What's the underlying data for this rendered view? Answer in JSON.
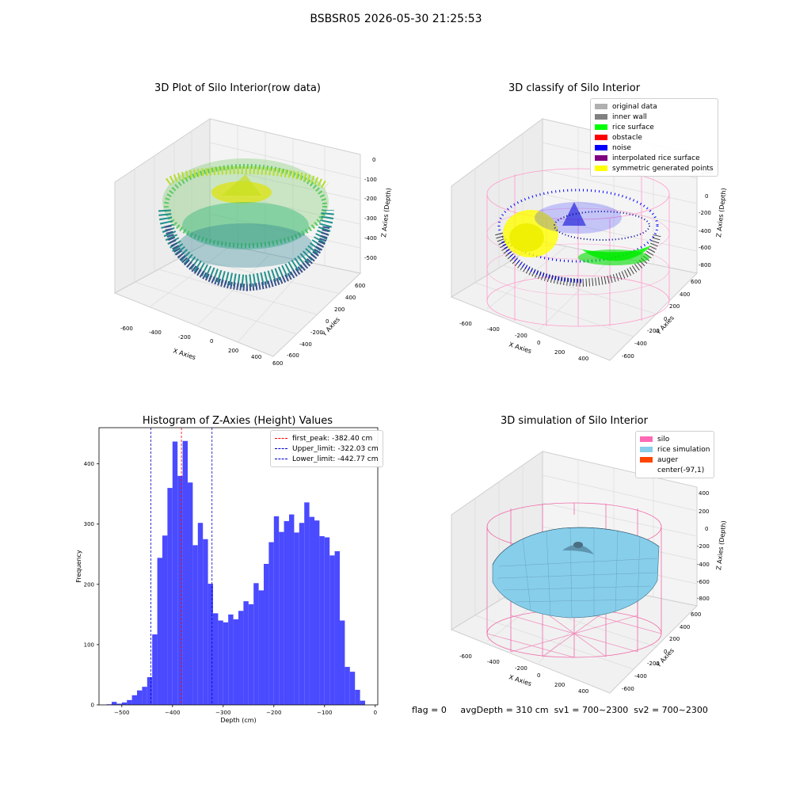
{
  "suptitle": "BSBSR05 2026-05-30 21:25:53",
  "panels": {
    "raw": {
      "title": "3D Plot of Silo Interior(row data)",
      "xlabel": "X Axies",
      "ylabel": "Y Axies",
      "zlabel": "Z Axies (Depth)",
      "xticks": [
        "-600",
        "-400",
        "-200",
        "0",
        "200",
        "400",
        "600"
      ],
      "yticks": [
        "600",
        "400",
        "200",
        "0",
        "-200",
        "-400",
        "-600"
      ],
      "zticks": [
        "0",
        "-100",
        "-200",
        "-300",
        "-400",
        "-500"
      ]
    },
    "classify": {
      "title": "3D classify of Silo Interior",
      "xlabel": "X Axies",
      "ylabel": "Y Axies",
      "zlabel": "Z Axies (Depth)",
      "xticks": [
        "-600",
        "-400",
        "-200",
        "0",
        "200",
        "400"
      ],
      "yticks": [
        "600",
        "400",
        "200",
        "0",
        "-200",
        "-400",
        "-600"
      ],
      "zticks": [
        "200",
        "0",
        "-200",
        "-400",
        "-600",
        "-800"
      ],
      "legend": [
        {
          "label": "original data",
          "color": "#b0b0b0"
        },
        {
          "label": "inner wall",
          "color": "#808080"
        },
        {
          "label": "rice surface",
          "color": "#00ff00"
        },
        {
          "label": "obstacle",
          "color": "#ff0000"
        },
        {
          "label": "noise",
          "color": "#0000ff"
        },
        {
          "label": "interpolated rice surface",
          "color": "#800080"
        },
        {
          "label": "symmetric generated points",
          "color": "#ffff00"
        }
      ]
    },
    "simulation": {
      "title": "3D simulation of Silo Interior",
      "xlabel": "X Axies",
      "ylabel": "Y Axies",
      "zlabel": "Z Axies (Depth)",
      "xticks": [
        "-600",
        "-400",
        "-200",
        "0",
        "200",
        "400"
      ],
      "yticks": [
        "600",
        "400",
        "200",
        "0",
        "-200",
        "-400",
        "-600"
      ],
      "zticks": [
        "400",
        "200",
        "0",
        "-200",
        "-400",
        "-600",
        "-800"
      ],
      "legend": [
        {
          "label": "silo",
          "color": "#ff69b4"
        },
        {
          "label": "rice simulation",
          "color": "#87ceeb"
        },
        {
          "label": "auger",
          "color": "#ff4500"
        },
        {
          "label": "center(-97,1)",
          "color": "#ffffff"
        }
      ]
    }
  },
  "footer": {
    "flag": "flag = 0",
    "avg": "avgDepth = 310 cm",
    "sv1": "sv1 = 700~2300",
    "sv2": "sv2 = 700~2300"
  },
  "chart_data": {
    "type": "bar",
    "title": "Histogram of Z-Axies (Height) Values",
    "xlabel": "Depth (cm)",
    "ylabel": "Frequency",
    "xlim": [
      -545,
      5
    ],
    "ylim": [
      0,
      460
    ],
    "bar_color": "#4a4aff",
    "bin_width": 10,
    "bin_starts": [
      -530,
      -520,
      -510,
      -500,
      -490,
      -480,
      -470,
      -460,
      -450,
      -440,
      -430,
      -420,
      -410,
      -400,
      -390,
      -380,
      -370,
      -360,
      -350,
      -340,
      -330,
      -320,
      -310,
      -300,
      -290,
      -280,
      -270,
      -260,
      -250,
      -240,
      -230,
      -220,
      -210,
      -200,
      -190,
      -180,
      -170,
      -160,
      -150,
      -140,
      -130,
      -120,
      -110,
      -100,
      -90,
      -80,
      -70,
      -60,
      -50,
      -40,
      -30
    ],
    "values": [
      1,
      5,
      2,
      4,
      8,
      16,
      24,
      30,
      46,
      117,
      244,
      281,
      360,
      437,
      380,
      438,
      369,
      265,
      302,
      275,
      201,
      152,
      140,
      137,
      150,
      142,
      156,
      172,
      167,
      202,
      190,
      234,
      270,
      313,
      287,
      305,
      316,
      286,
      302,
      336,
      312,
      306,
      280,
      278,
      248,
      255,
      140,
      63,
      55,
      25,
      7
    ],
    "xticks": [
      -500,
      -400,
      -300,
      -200,
      -100,
      0
    ],
    "xtick_labels": [
      "−500",
      "−400",
      "−300",
      "−200",
      "−100",
      "0"
    ],
    "yticks": [
      0,
      100,
      200,
      300,
      400
    ],
    "ytick_labels": [
      "0",
      "100",
      "200",
      "300",
      "400"
    ],
    "vlines": [
      {
        "x": -382.4,
        "color": "#ff0000",
        "label": "first_peak: -382.40 cm"
      },
      {
        "x": -322.03,
        "color": "#0000cc",
        "label": "Upper_limit: -322.03 cm"
      },
      {
        "x": -442.77,
        "color": "#0000cc",
        "label": "Lower_limit: -442.77 cm"
      }
    ],
    "legend_position": "upper right",
    "grid": false
  }
}
